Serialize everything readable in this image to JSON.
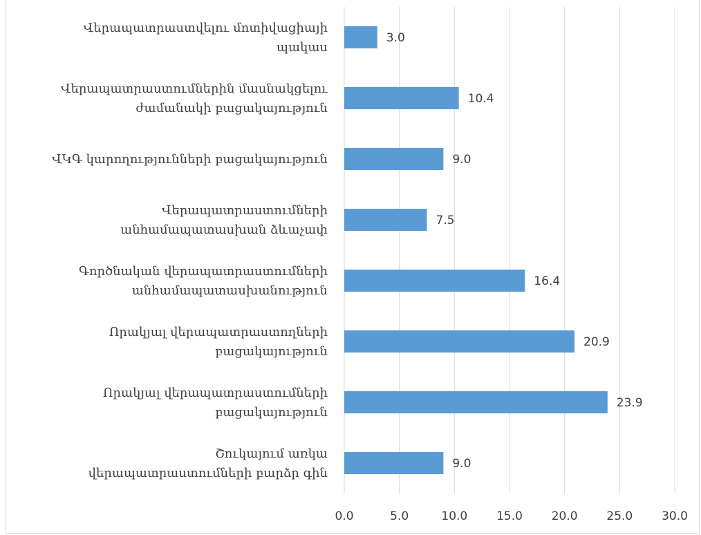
{
  "chart_data": {
    "type": "bar",
    "orientation": "horizontal",
    "categories": [
      [
        "Վերապատրաստվելու մոտիվացիայի",
        "պակաս"
      ],
      [
        "Վերապատրաստումներին մասնակցելու",
        "ժամանակի բացակայություն"
      ],
      [
        "ՎԿԳ կարողությունների բացակայություն"
      ],
      [
        "Վերապատրաստումների",
        "անհամապատասխան ձևաչափ"
      ],
      [
        "Գործնական վերապատրաստումների",
        "անհամապատասխանություն"
      ],
      [
        "Որակյալ վերապատրաստողների",
        "բացակայություն"
      ],
      [
        "Որակյալ վերապատրաստումների",
        "բացակայություն"
      ],
      [
        "Շուկայում առկա",
        "վերապատրաստումների բարձր գին"
      ]
    ],
    "values": [
      3.0,
      10.4,
      9.0,
      7.5,
      16.4,
      20.9,
      23.9,
      9.0
    ],
    "data_labels": [
      "3.0",
      "10.4",
      "9.0",
      "7.5",
      "16.4",
      "20.9",
      "23.9",
      "9.0"
    ],
    "x_ticks": [
      "0.0",
      "5.0",
      "10.0",
      "15.0",
      "20.0",
      "25.0",
      "30.0"
    ],
    "xlim": [
      0,
      30
    ],
    "grid": true,
    "bar_color": "#5b9bd5",
    "title": "",
    "xlabel": "",
    "ylabel": ""
  }
}
